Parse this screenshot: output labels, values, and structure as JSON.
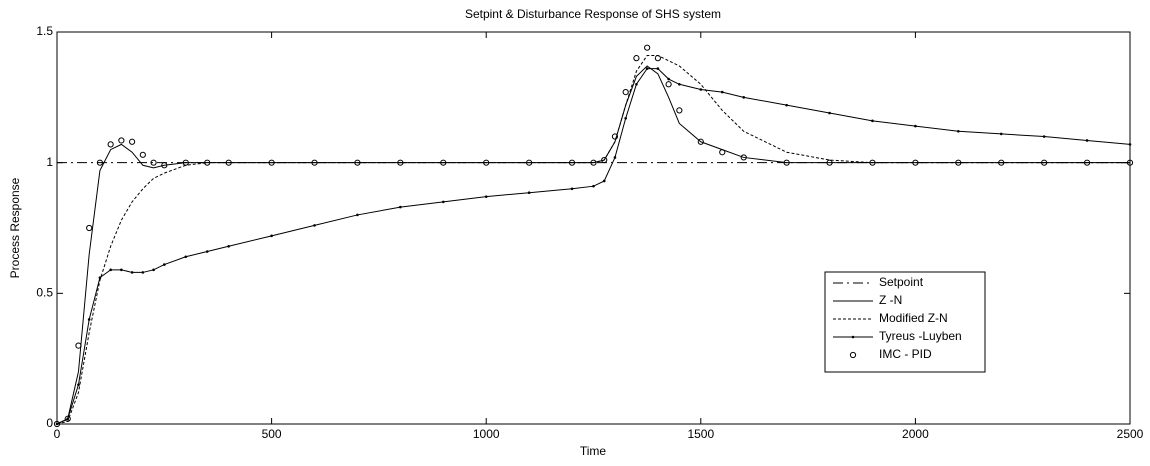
{
  "chart_data": {
    "type": "line",
    "title": "Setpint & Disturbance Response of SHS system",
    "x_label": "Time",
    "y_label": "Process Response",
    "x": [
      0,
      25,
      50,
      75,
      100,
      125,
      150,
      175,
      200,
      225,
      250,
      300,
      350,
      400,
      500,
      600,
      700,
      800,
      900,
      1000,
      1100,
      1200,
      1250,
      1275,
      1300,
      1325,
      1350,
      1375,
      1400,
      1425,
      1450,
      1500,
      1550,
      1600,
      1700,
      1800,
      1900,
      2000,
      2100,
      2200,
      2300,
      2400,
      2500
    ],
    "series": [
      {
        "name": "Setpoint",
        "color": "#000000",
        "line": "dashdot",
        "marker": "none",
        "values": [
          1,
          1,
          1,
          1,
          1,
          1,
          1,
          1,
          1,
          1,
          1,
          1,
          1,
          1,
          1,
          1,
          1,
          1,
          1,
          1,
          1,
          1,
          1,
          1,
          1,
          1,
          1,
          1,
          1,
          1,
          1,
          1,
          1,
          1,
          1,
          1,
          1,
          1,
          1,
          1,
          1,
          1,
          1
        ]
      },
      {
        "name": "Z -N",
        "color": "#000000",
        "line": "solid",
        "marker": "none",
        "values": [
          0,
          0.02,
          0.2,
          0.65,
          0.97,
          1.05,
          1.07,
          1.04,
          0.99,
          0.98,
          0.99,
          1,
          1,
          1,
          1,
          1,
          1,
          1,
          1,
          1,
          1,
          1,
          1,
          1.01,
          1.08,
          1.22,
          1.33,
          1.37,
          1.34,
          1.25,
          1.15,
          1.08,
          1.05,
          1.02,
          1,
          1,
          1,
          1,
          1,
          1,
          1,
          1,
          1
        ]
      },
      {
        "name": "Modified Z-N",
        "color": "#000000",
        "line": "dotted",
        "marker": "none",
        "values": [
          0,
          0.01,
          0.12,
          0.35,
          0.55,
          0.68,
          0.78,
          0.85,
          0.9,
          0.94,
          0.96,
          0.99,
          1,
          1,
          1,
          1,
          1,
          1,
          1,
          1,
          1,
          1,
          1,
          1.01,
          1.08,
          1.22,
          1.35,
          1.41,
          1.41,
          1.39,
          1.37,
          1.3,
          1.2,
          1.12,
          1.04,
          1.01,
          1,
          1,
          1,
          1,
          1,
          1,
          1
        ]
      },
      {
        "name": "Tyreus -Luyben",
        "color": "#000000",
        "line": "solid",
        "marker": "dot",
        "values": [
          0,
          0.02,
          0.15,
          0.4,
          0.56,
          0.59,
          0.59,
          0.58,
          0.58,
          0.59,
          0.61,
          0.64,
          0.66,
          0.68,
          0.72,
          0.76,
          0.8,
          0.83,
          0.85,
          0.87,
          0.885,
          0.9,
          0.91,
          0.93,
          1.02,
          1.17,
          1.3,
          1.36,
          1.36,
          1.32,
          1.3,
          1.28,
          1.27,
          1.25,
          1.22,
          1.19,
          1.16,
          1.14,
          1.12,
          1.11,
          1.1,
          1.085,
          1.07
        ]
      },
      {
        "name": "IMC - PID",
        "color": "#000000",
        "line": "none",
        "marker": "circle",
        "values": [
          0,
          0.02,
          0.3,
          0.75,
          1,
          1.07,
          1.085,
          1.08,
          1.03,
          1,
          0.99,
          1,
          1,
          1,
          1,
          1,
          1,
          1,
          1,
          1,
          1,
          1,
          1,
          1.01,
          1.1,
          1.27,
          1.4,
          1.44,
          1.4,
          1.3,
          1.2,
          1.08,
          1.04,
          1.02,
          1,
          1,
          1,
          1,
          1,
          1,
          1,
          1,
          1
        ]
      }
    ],
    "xlim": [
      0,
      2500
    ],
    "xticks": [
      0,
      500,
      1000,
      1500,
      2000,
      2500
    ],
    "ylim": [
      0,
      1.5
    ],
    "yticks": [
      0,
      0.5,
      1,
      1.5
    ],
    "grid": false,
    "legend": "lower right"
  }
}
